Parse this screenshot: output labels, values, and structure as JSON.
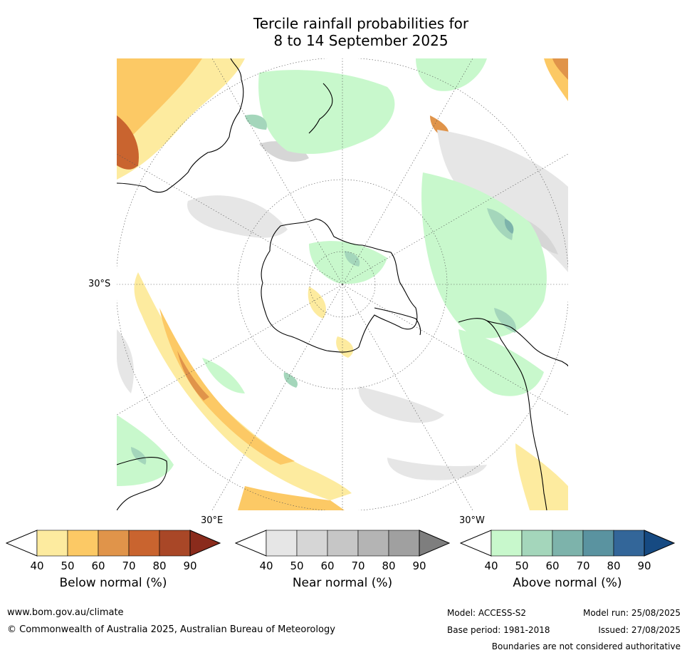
{
  "title_line1": "Tercile rainfall probabilities for",
  "title_line2": "8 to 14 September 2025",
  "map": {
    "lat_label": "30°S",
    "lon_label_east": "30°E",
    "lon_label_west": "30°W",
    "projection": "south polar stereographic"
  },
  "colorbars": [
    {
      "title": "Below normal (%)",
      "ticks": [
        "40",
        "50",
        "60",
        "70",
        "80",
        "90"
      ],
      "colors": [
        "#ffffff",
        "#fdeb9f",
        "#fcc965",
        "#e0944a",
        "#c9642f",
        "#a94727",
        "#8a2b1c"
      ]
    },
    {
      "title": "Near normal (%)",
      "ticks": [
        "40",
        "50",
        "60",
        "70",
        "80",
        "90"
      ],
      "colors": [
        "#ffffff",
        "#e6e6e6",
        "#d6d6d6",
        "#c6c6c6",
        "#b4b4b4",
        "#a0a0a0",
        "#7e7e7e"
      ]
    },
    {
      "title": "Above normal (%)",
      "ticks": [
        "40",
        "50",
        "60",
        "70",
        "80",
        "90"
      ],
      "colors": [
        "#ffffff",
        "#c8f8cc",
        "#a4d6bb",
        "#7db3ab",
        "#5a93a0",
        "#336699",
        "#164a82"
      ]
    }
  ],
  "footer": {
    "website": "www.bom.gov.au/climate",
    "copyright": "© Commonwealth of Australia 2025, Australian Bureau of Meteorology",
    "model": "Model: ACCESS-S2",
    "model_run": "Model run: 25/08/2025",
    "base_period": "Base period: 1981-2018",
    "issued": "Issued: 27/08/2025",
    "disclaimer": "Boundaries are not considered authoritative"
  }
}
